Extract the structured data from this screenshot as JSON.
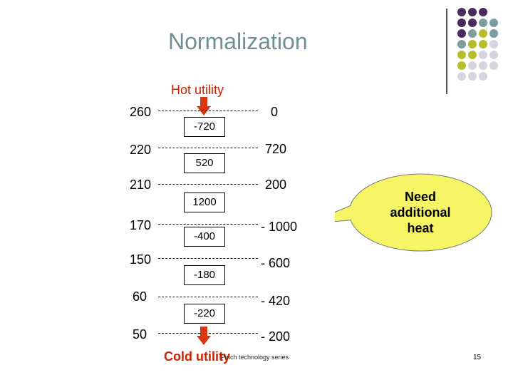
{
  "title": "Normalization",
  "hot_utility_label": "Hot utility",
  "cold_utility_label": "Cold utility",
  "footer_text": "Pinch technology series",
  "page_number": "15",
  "callout": {
    "line1": "Need",
    "line2": "additional",
    "line3": "heat",
    "fill": "#f5f566"
  },
  "temperatures": [
    "260",
    "220",
    "210",
    "170",
    "150",
    "60",
    "50"
  ],
  "interval_heats": [
    "-720",
    "520",
    "1200",
    "-400",
    "-180",
    "-220"
  ],
  "cumulative_heats": [
    "0",
    "720",
    "200",
    "- 1000",
    "- 600",
    "- 420",
    "- 200"
  ],
  "colors": {
    "title": "#6f8f92",
    "utility_text": "#cc2200",
    "arrow": "#d83810",
    "dot_purple": "#4b2a5e",
    "dot_teal": "#7d9ea0",
    "dot_olive": "#b9bd2a",
    "dot_lavender": "#d7d4e2"
  }
}
